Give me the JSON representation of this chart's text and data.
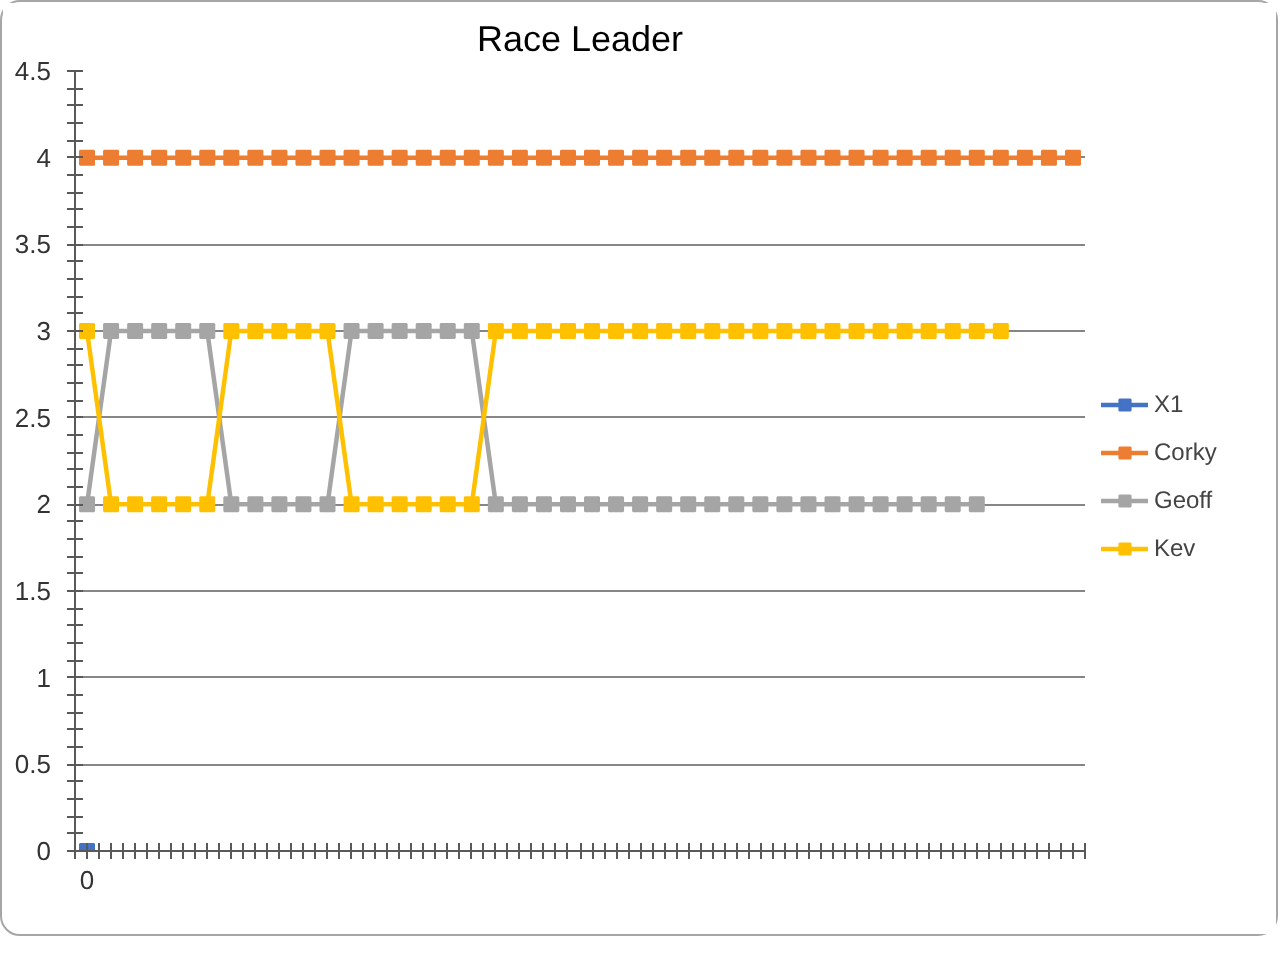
{
  "chart_data": {
    "type": "line",
    "title": "Race Leader",
    "categories": [
      "0",
      null,
      null,
      null,
      null,
      null,
      null,
      null,
      null,
      null,
      null,
      null,
      null,
      null,
      null,
      null,
      null,
      null,
      null,
      null,
      null,
      null,
      null,
      null,
      null,
      null,
      null,
      null,
      null,
      null,
      null,
      null,
      null,
      null,
      null,
      null,
      null,
      null,
      null,
      null,
      null,
      null
    ],
    "series": [
      {
        "name": "X1",
        "color": "#4472c4",
        "values": [
          0,
          null,
          null,
          null,
          null,
          null,
          null,
          null,
          null,
          null,
          null,
          null,
          null,
          null,
          null,
          null,
          null,
          null,
          null,
          null,
          null,
          null,
          null,
          null,
          null,
          null,
          null,
          null,
          null,
          null,
          null,
          null,
          null,
          null,
          null,
          null,
          null,
          null,
          null,
          null,
          null,
          null
        ]
      },
      {
        "name": "Corky",
        "color": "#ed7d31",
        "values": [
          4,
          4,
          4,
          4,
          4,
          4,
          4,
          4,
          4,
          4,
          4,
          4,
          4,
          4,
          4,
          4,
          4,
          4,
          4,
          4,
          4,
          4,
          4,
          4,
          4,
          4,
          4,
          4,
          4,
          4,
          4,
          4,
          4,
          4,
          4,
          4,
          4,
          4,
          4,
          4,
          4,
          4
        ]
      },
      {
        "name": "Geoff",
        "color": "#a5a5a5",
        "values": [
          2,
          3,
          3,
          3,
          3,
          3,
          2,
          2,
          2,
          2,
          2,
          3,
          3,
          3,
          3,
          3,
          3,
          2,
          2,
          2,
          2,
          2,
          2,
          2,
          2,
          2,
          2,
          2,
          2,
          2,
          2,
          2,
          2,
          2,
          2,
          2,
          2,
          2,
          null,
          null,
          null,
          null
        ]
      },
      {
        "name": "Kev",
        "color": "#ffc000",
        "values": [
          3,
          2,
          2,
          2,
          2,
          2,
          3,
          3,
          3,
          3,
          3,
          2,
          2,
          2,
          2,
          2,
          2,
          3,
          3,
          3,
          3,
          3,
          3,
          3,
          3,
          3,
          3,
          3,
          3,
          3,
          3,
          3,
          3,
          3,
          3,
          3,
          3,
          3,
          3,
          null,
          null,
          null
        ]
      }
    ],
    "ylim": [
      0,
      4.5
    ],
    "yticks": [
      0,
      0.5,
      1,
      1.5,
      2,
      2.5,
      3,
      3.5,
      4,
      4.5
    ],
    "grid": "y",
    "legend": "right",
    "marker": "square",
    "line_style": "solid"
  }
}
